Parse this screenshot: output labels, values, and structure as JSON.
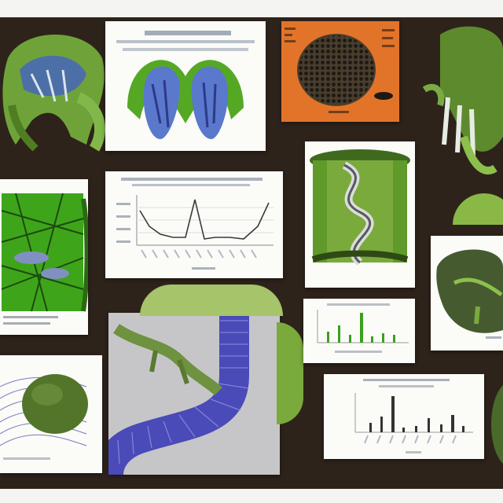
{
  "colors": {
    "board_background": "#2e231b",
    "wall": "#f4f4f2",
    "card": "#fbfbf8",
    "leaf_green": "#5f9a2a",
    "bright_green": "#44c01a",
    "vessel_blue": "#4848b8",
    "orange_panel": "#e2742a",
    "dark_green": "#3a5a1e"
  },
  "panels": [
    {
      "id": "specimen-top-left",
      "icon": "green-organ-illustration"
    },
    {
      "id": "blue-lobes-diagram",
      "icon": "blue-lobes-in-green-shell"
    },
    {
      "id": "orange-cell-panel",
      "icon": "dark-cell-cluster-on-orange"
    },
    {
      "id": "claw-structure",
      "icon": "green-claw-organism"
    },
    {
      "id": "green-mesh-tissue",
      "icon": "green-vein-mesh"
    },
    {
      "id": "line-graph",
      "icon": "line-chart"
    },
    {
      "id": "vascular-cylinder",
      "icon": "twisted-vascular-column"
    },
    {
      "id": "leaf-cross-section",
      "icon": "dark-green-leaf"
    },
    {
      "id": "wire-sphere",
      "icon": "green-sphere-blue-wires"
    },
    {
      "id": "blue-tube-render",
      "icon": "blue-coiled-tube"
    },
    {
      "id": "green-bar-graph",
      "icon": "green-bar-chart"
    },
    {
      "id": "dark-bar-graph",
      "icon": "dark-bar-chart"
    }
  ]
}
